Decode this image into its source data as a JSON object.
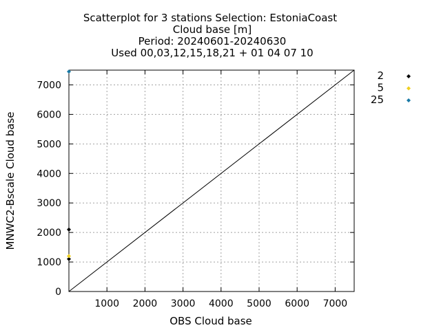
{
  "chart_data": {
    "type": "scatter",
    "title_lines": [
      "Scatterplot for    3 stations Selection: EstoniaCoast",
      "Cloud base [m]",
      "Period: 20240601-20240630",
      "Used 00,03,12,15,18,21 + 01 04 07 10"
    ],
    "xlabel": "OBS Cloud base",
    "ylabel": "MNWC2-Bscale Cloud base",
    "xlim": [
      0,
      7500
    ],
    "ylim": [
      0,
      7500
    ],
    "xticks": [
      1000,
      2000,
      3000,
      4000,
      5000,
      6000,
      7000
    ],
    "yticks": [
      0,
      1000,
      2000,
      3000,
      4000,
      5000,
      6000,
      7000
    ],
    "grid": true,
    "diagonal": true,
    "legend_position": "right",
    "series": [
      {
        "name": "2",
        "color": "#000000",
        "points": [
          [
            0,
            2100
          ],
          [
            0,
            1100
          ]
        ]
      },
      {
        "name": "5",
        "color": "#f0d020",
        "points": [
          [
            0,
            1200
          ]
        ]
      },
      {
        "name": "25",
        "color": "#1a7aa6",
        "points": [
          [
            0,
            7450
          ]
        ]
      }
    ]
  }
}
